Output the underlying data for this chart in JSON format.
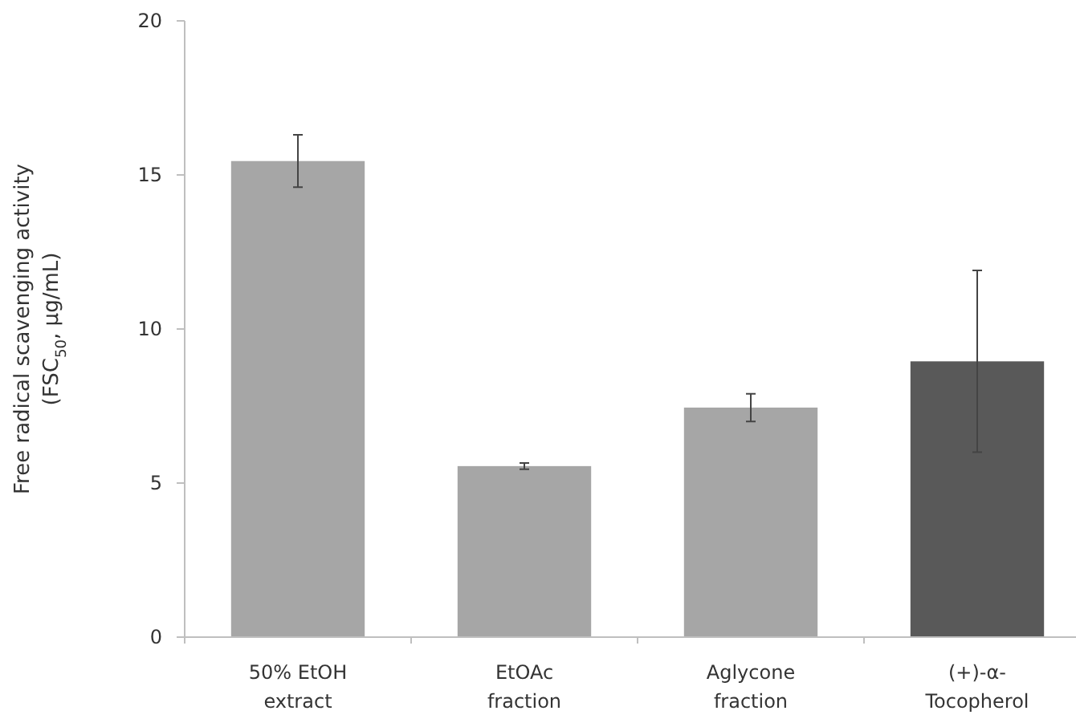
{
  "chart_data": {
    "type": "bar",
    "ylabel": "Free radical scavenging activity\n(FSC$_{50}$, μg/mL)",
    "categories": [
      "50% EtOH\nextract",
      "EtOAc\nfraction",
      "Aglycone\nfraction",
      "(+)-α-\nTocopherol"
    ],
    "values": [
      15.45,
      5.55,
      7.45,
      8.95
    ],
    "errors": [
      0.85,
      0.1,
      0.45,
      2.95
    ],
    "colors": [
      "#a6a6a6",
      "#a6a6a6",
      "#a6a6a6",
      "#595959"
    ],
    "ylim": [
      0,
      20
    ],
    "yticks": [
      0,
      5,
      10,
      15,
      20
    ],
    "grid": false
  }
}
